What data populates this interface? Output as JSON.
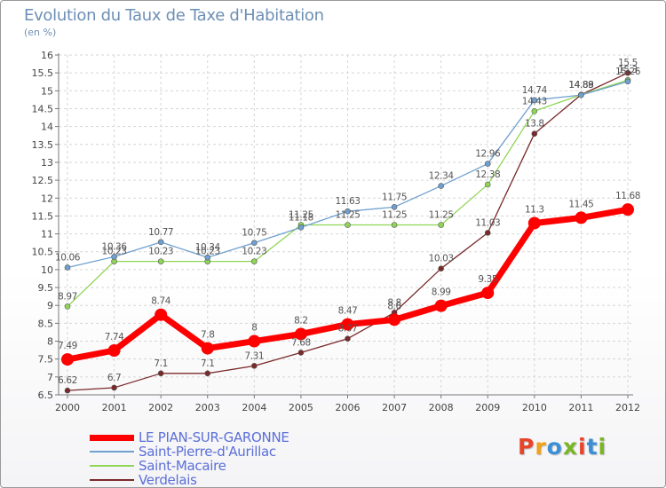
{
  "header": {
    "title": "Evolution du Taux de Taxe d'Habitation",
    "unit": "(en %)"
  },
  "logo": {
    "text": "Proxiti",
    "colors": [
      "#e8442a",
      "#f0a21a",
      "#3a8fd6",
      "#7ab526",
      "#e8442a",
      "#3a8fd6",
      "#7ab526"
    ]
  },
  "chart_data": {
    "type": "line",
    "title": "Evolution du Taux de Taxe d'Habitation",
    "subtitle": "(en %)",
    "xlabel": "",
    "ylabel": "",
    "x": [
      "2000",
      "2001",
      "2002",
      "2003",
      "2004",
      "2005",
      "2006",
      "2007",
      "2008",
      "2009",
      "2010",
      "2011",
      "2012"
    ],
    "ylim": [
      6.5,
      16
    ],
    "yticks": [
      "6.5",
      "7",
      "7.5",
      "8",
      "8.5",
      "9",
      "9.5",
      "10",
      "10.5",
      "11",
      "11.5",
      "12",
      "12.5",
      "13",
      "13.5",
      "14",
      "14.5",
      "15",
      "15.5",
      "16"
    ],
    "grid": true,
    "legend_position": "bottom-left",
    "series": [
      {
        "name": "LE PIAN-SUR-GARONNE",
        "color": "#ff0000",
        "values": [
          7.49,
          7.74,
          8.74,
          7.8,
          8,
          8.2,
          8.47,
          8.6,
          8.99,
          9.35,
          11.3,
          11.45,
          11.68
        ],
        "labels": [
          "7.49",
          "7.74",
          "8.74",
          "7.8",
          "8",
          "8.2",
          "8.47",
          "8.6",
          "8.99",
          "9.35",
          "11.3",
          "11.45",
          "11.68"
        ]
      },
      {
        "name": "Saint-Pierre-d'Aurillac",
        "color": "#6fa0cf",
        "values": [
          10.06,
          10.36,
          10.77,
          10.34,
          10.75,
          11.18,
          11.63,
          11.75,
          12.34,
          12.96,
          14.74,
          14.88,
          15.26
        ],
        "labels": [
          "10.06",
          "10.36",
          "10.77",
          "10.34",
          "10.75",
          "11.18",
          "11.63",
          "11.75",
          "12.34",
          "12.96",
          "14.74",
          "14.88",
          "15.26"
        ]
      },
      {
        "name": "Saint-Macaire",
        "color": "#8fd656",
        "values": [
          8.97,
          10.23,
          10.23,
          10.23,
          10.23,
          11.25,
          11.25,
          11.25,
          11.25,
          12.38,
          14.43,
          14.89,
          15.3
        ],
        "labels": [
          "8.97",
          "10.23",
          "10.23",
          "10.23",
          "10.23",
          "11.25",
          "11.25",
          "11.25",
          "11.25",
          "12.38",
          "14.43",
          "14.89",
          "15.3"
        ]
      },
      {
        "name": "Verdelais",
        "color": "#7a2a2a",
        "values": [
          6.62,
          6.7,
          7.1,
          7.1,
          7.31,
          7.68,
          8.07,
          8.8,
          10.03,
          11.03,
          13.8,
          14.89,
          15.5
        ],
        "labels": [
          "6.62",
          "6.7",
          "7.1",
          "7.1",
          "7.31",
          "7.68",
          "8.07",
          "8.8",
          "10.03",
          "11.03",
          "13.8",
          "14.89",
          "15.5"
        ]
      }
    ]
  }
}
